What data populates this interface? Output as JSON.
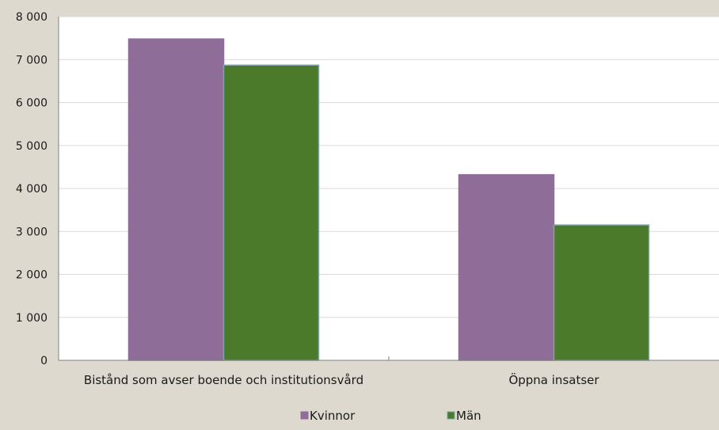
{
  "chart_data": {
    "type": "bar",
    "categories": [
      "Bistånd som avser boende och institutionsvård",
      "Öppna insatser"
    ],
    "series": [
      {
        "name": "Kvinnor",
        "values": [
          7480,
          4320
        ],
        "color": "#8e6e98",
        "border": "#8e6e98"
      },
      {
        "name": "Män",
        "values": [
          6870,
          3150
        ],
        "color": "#4a7a2a",
        "border": "#7ea6a8"
      }
    ],
    "ylim": [
      0,
      8000
    ],
    "yticks": [
      0,
      1000,
      2000,
      3000,
      4000,
      5000,
      6000,
      7000,
      8000
    ],
    "ytick_labels": [
      "0",
      "1 000",
      "2 000",
      "3 000",
      "4 000",
      "5 000",
      "6 000",
      "7 000",
      "8 000"
    ],
    "grid": true,
    "legend_position": "bottom"
  }
}
